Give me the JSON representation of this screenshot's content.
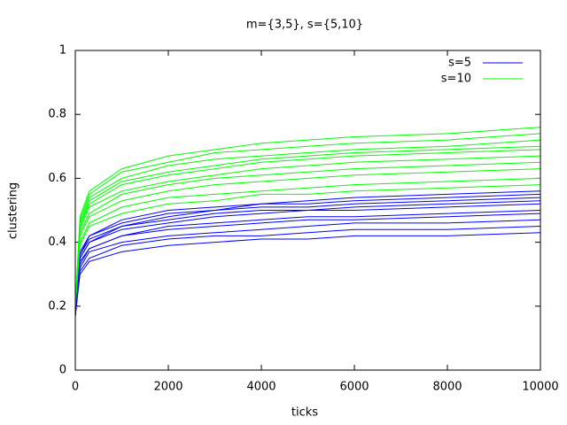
{
  "chart_data": {
    "type": "line",
    "title": "m={3,5}, s={5,10}",
    "x_label": "ticks",
    "y_label": "clustering",
    "x": [
      0,
      100,
      300,
      1000,
      2000,
      3000,
      4000,
      5000,
      6000,
      8000,
      10000
    ],
    "xlim": [
      0,
      10000
    ],
    "xticks": [
      0,
      2000,
      4000,
      6000,
      8000,
      10000
    ],
    "ylim": [
      0,
      1
    ],
    "yticks": [
      0,
      0.2,
      0.4,
      0.6,
      0.8,
      1
    ],
    "legend": "top-right",
    "series": [
      {
        "name": "s=5",
        "color": "#0000ff",
        "values": [
          [
            0.17,
            0.3,
            0.34,
            0.37,
            0.39,
            0.4,
            0.41,
            0.41,
            0.42,
            0.42,
            0.43
          ],
          [
            0.17,
            0.31,
            0.35,
            0.39,
            0.41,
            0.42,
            0.42,
            0.43,
            0.44,
            0.44,
            0.45
          ],
          [
            0.17,
            0.32,
            0.37,
            0.4,
            0.42,
            0.43,
            0.44,
            0.45,
            0.46,
            0.46,
            0.47
          ],
          [
            0.17,
            0.33,
            0.38,
            0.42,
            0.44,
            0.45,
            0.46,
            0.47,
            0.47,
            0.48,
            0.49
          ],
          [
            0.17,
            0.34,
            0.38,
            0.42,
            0.45,
            0.46,
            0.47,
            0.48,
            0.48,
            0.49,
            0.5
          ],
          [
            0.17,
            0.35,
            0.4,
            0.44,
            0.46,
            0.48,
            0.49,
            0.5,
            0.5,
            0.51,
            0.52
          ],
          [
            0.17,
            0.35,
            0.4,
            0.45,
            0.47,
            0.49,
            0.5,
            0.5,
            0.51,
            0.52,
            0.53
          ],
          [
            0.17,
            0.36,
            0.41,
            0.45,
            0.48,
            0.5,
            0.51,
            0.51,
            0.52,
            0.53,
            0.54
          ],
          [
            0.17,
            0.36,
            0.42,
            0.46,
            0.49,
            0.5,
            0.52,
            0.52,
            0.53,
            0.54,
            0.55
          ],
          [
            0.17,
            0.37,
            0.42,
            0.47,
            0.5,
            0.51,
            0.52,
            0.53,
            0.54,
            0.55,
            0.56
          ]
        ]
      },
      {
        "name": "s=10",
        "color": "#00ff00",
        "values": [
          [
            0.2,
            0.39,
            0.45,
            0.49,
            0.52,
            0.53,
            0.55,
            0.55,
            0.56,
            0.57,
            0.58
          ],
          [
            0.2,
            0.4,
            0.46,
            0.51,
            0.54,
            0.55,
            0.56,
            0.57,
            0.58,
            0.59,
            0.6
          ],
          [
            0.2,
            0.42,
            0.48,
            0.53,
            0.56,
            0.58,
            0.59,
            0.6,
            0.61,
            0.62,
            0.63
          ],
          [
            0.2,
            0.43,
            0.49,
            0.55,
            0.58,
            0.6,
            0.61,
            0.62,
            0.63,
            0.64,
            0.65
          ],
          [
            0.2,
            0.44,
            0.51,
            0.56,
            0.59,
            0.61,
            0.63,
            0.64,
            0.65,
            0.66,
            0.67
          ],
          [
            0.2,
            0.45,
            0.52,
            0.58,
            0.61,
            0.63,
            0.65,
            0.66,
            0.67,
            0.68,
            0.69
          ],
          [
            0.2,
            0.45,
            0.53,
            0.59,
            0.62,
            0.64,
            0.66,
            0.67,
            0.68,
            0.69,
            0.7
          ],
          [
            0.2,
            0.46,
            0.54,
            0.6,
            0.64,
            0.66,
            0.67,
            0.68,
            0.69,
            0.7,
            0.72
          ],
          [
            0.2,
            0.47,
            0.55,
            0.62,
            0.65,
            0.68,
            0.69,
            0.7,
            0.71,
            0.72,
            0.74
          ],
          [
            0.2,
            0.48,
            0.56,
            0.63,
            0.67,
            0.69,
            0.71,
            0.72,
            0.73,
            0.74,
            0.76
          ]
        ]
      }
    ]
  }
}
